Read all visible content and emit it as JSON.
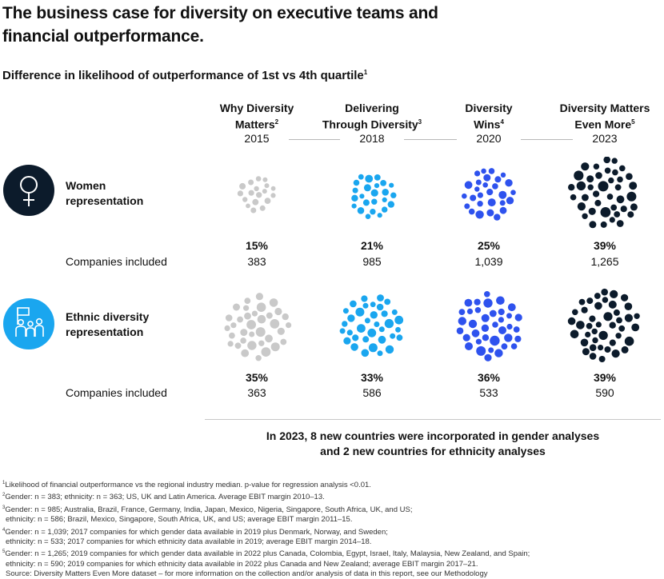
{
  "title": "The business case for diversity on executive teams and financial outperformance.",
  "subtitle": "Difference in likelihood of outperformance of 1st vs 4th quartile",
  "subtitle_sup": "1",
  "colors": {
    "2015": "#c9c9c9",
    "2018": "#1aa6ef",
    "2020": "#2e52ee",
    "2023": "#0c1b2b"
  },
  "chart_data": {
    "type": "bubble-matrix",
    "title": "Difference in likelihood of outperformance of 1st vs 4th quartile",
    "columns": [
      {
        "name": "Why Diversity Matters",
        "sup": "2",
        "line1": "Why Diversity",
        "line2": "Matters",
        "year": "2015"
      },
      {
        "name": "Delivering Through Diversity",
        "sup": "3",
        "line1": "Delivering",
        "line2": "Through Diversity",
        "year": "2018"
      },
      {
        "name": "Diversity Wins",
        "sup": "4",
        "line1": "Diversity",
        "line2": "Wins",
        "year": "2020"
      },
      {
        "name": "Diversity Matters Even More",
        "sup": "5",
        "line1": "Diversity Matters",
        "line2": "Even More",
        "year": "2023"
      }
    ],
    "series": [
      {
        "name": "Women representation",
        "line1": "Women",
        "line2": "representation",
        "values": [
          15,
          21,
          25,
          39
        ],
        "labels": [
          "15%",
          "21%",
          "25%",
          "39%"
        ],
        "companies_label": "Companies included",
        "companies": [
          "383",
          "985",
          "1,039",
          "1,265"
        ]
      },
      {
        "name": "Ethnic diversity representation",
        "line1": "Ethnic diversity",
        "line2": "representation",
        "values": [
          35,
          33,
          36,
          39
        ],
        "labels": [
          "35%",
          "33%",
          "36%",
          "39%"
        ],
        "companies_label": "Companies included",
        "companies": [
          "363",
          "586",
          "533",
          "590"
        ]
      }
    ]
  },
  "note": {
    "line1": "In 2023, 8 new countries were incorporated in gender analyses",
    "line2": "and 2 new countries for ethnicity analyses"
  },
  "footnotes": [
    {
      "sup": "1",
      "text": "Likelihood of financial outperformance vs the regional industry median. p-value for regression analysis <0.01."
    },
    {
      "sup": "2",
      "text": "Gender: n = 383; ethnicity: n = 363; US, UK and Latin America. Average EBIT margin 2010–13."
    },
    {
      "sup": "3",
      "text": "Gender: n = 985; Australia, Brazil, France, Germany, India, Japan, Mexico, Nigeria, Singapore, South Africa, UK, and US;"
    },
    {
      "sup": "",
      "text": "ethnicity: n = 586; Brazil, Mexico, Singapore, South Africa, UK, and US; average EBIT margin 2011–15."
    },
    {
      "sup": "4",
      "text": "Gender: n = 1,039; 2017 companies for which gender data available in 2019 plus Denmark, Norway, and Sweden;"
    },
    {
      "sup": "",
      "text": "ethnicity: n = 533; 2017 companies for which ethnicity data available in 2019; average EBIT margin 2014–18."
    },
    {
      "sup": "5",
      "text": "Gender: n = 1,265; 2019 companies for which gender data available in 2022 plus Canada, Colombia, Egypt, Israel, Italy, Malaysia, New Zealand, and Spain;"
    },
    {
      "sup": "",
      "text": "ethnicity: n = 590; 2019 companies for which ethnicity data available in 2022 plus Canada and New Zealand; average EBIT margin 2017–21."
    },
    {
      "sup": "",
      "text": "Source: Diversity Matters Even More dataset – for more information on the collection and/or analysis of data in this report, see our Methodology"
    }
  ]
}
